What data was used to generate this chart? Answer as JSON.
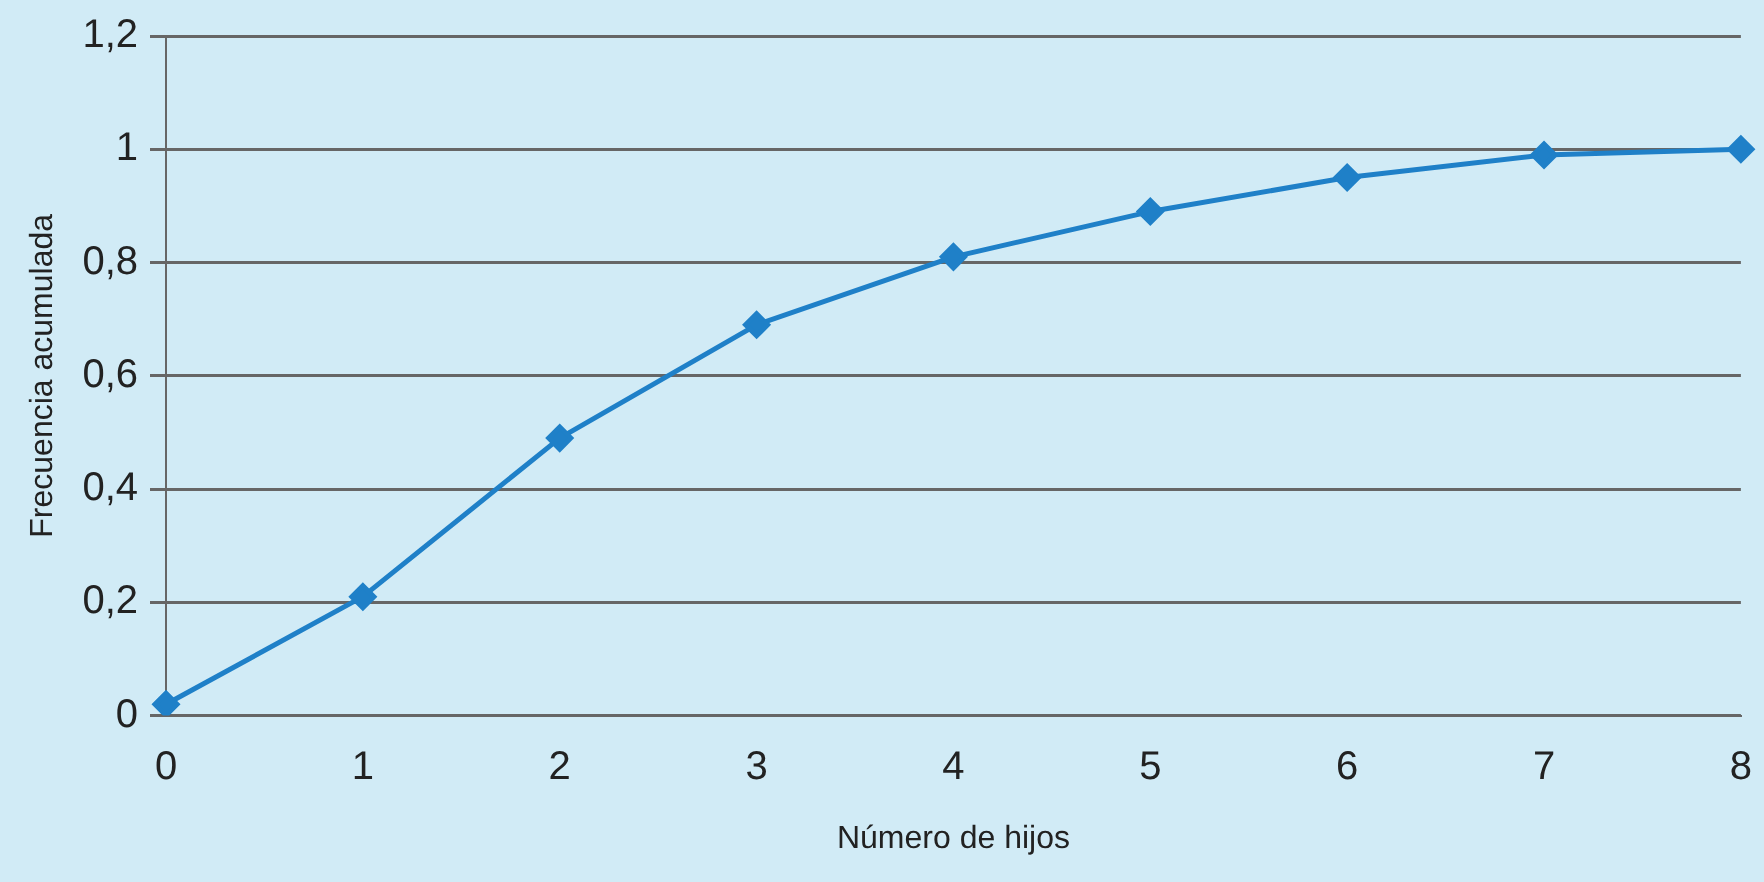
{
  "chart_data": {
    "type": "line",
    "xlabel": "Número de hijos",
    "ylabel": "Frecuencia acumulada",
    "categories": [
      "0",
      "1",
      "2",
      "3",
      "4",
      "5",
      "6",
      "7",
      "8"
    ],
    "series": [
      {
        "color": "#1f80c8",
        "values": [
          0.02,
          0.21,
          0.49,
          0.69,
          0.81,
          0.89,
          0.95,
          0.99,
          1.0
        ]
      }
    ],
    "ylim": [
      0,
      1.2
    ],
    "yticks": [
      {
        "value": 0,
        "label": "0"
      },
      {
        "value": 0.2,
        "label": "0,2"
      },
      {
        "value": 0.4,
        "label": "0,4"
      },
      {
        "value": 0.6,
        "label": "0,6"
      },
      {
        "value": 0.8,
        "label": "0,8"
      },
      {
        "value": 1,
        "label": "1"
      },
      {
        "value": 1.2,
        "label": "1,2"
      }
    ],
    "grid": "y",
    "marker": "diamond",
    "line_style": "solid",
    "legend": false
  }
}
